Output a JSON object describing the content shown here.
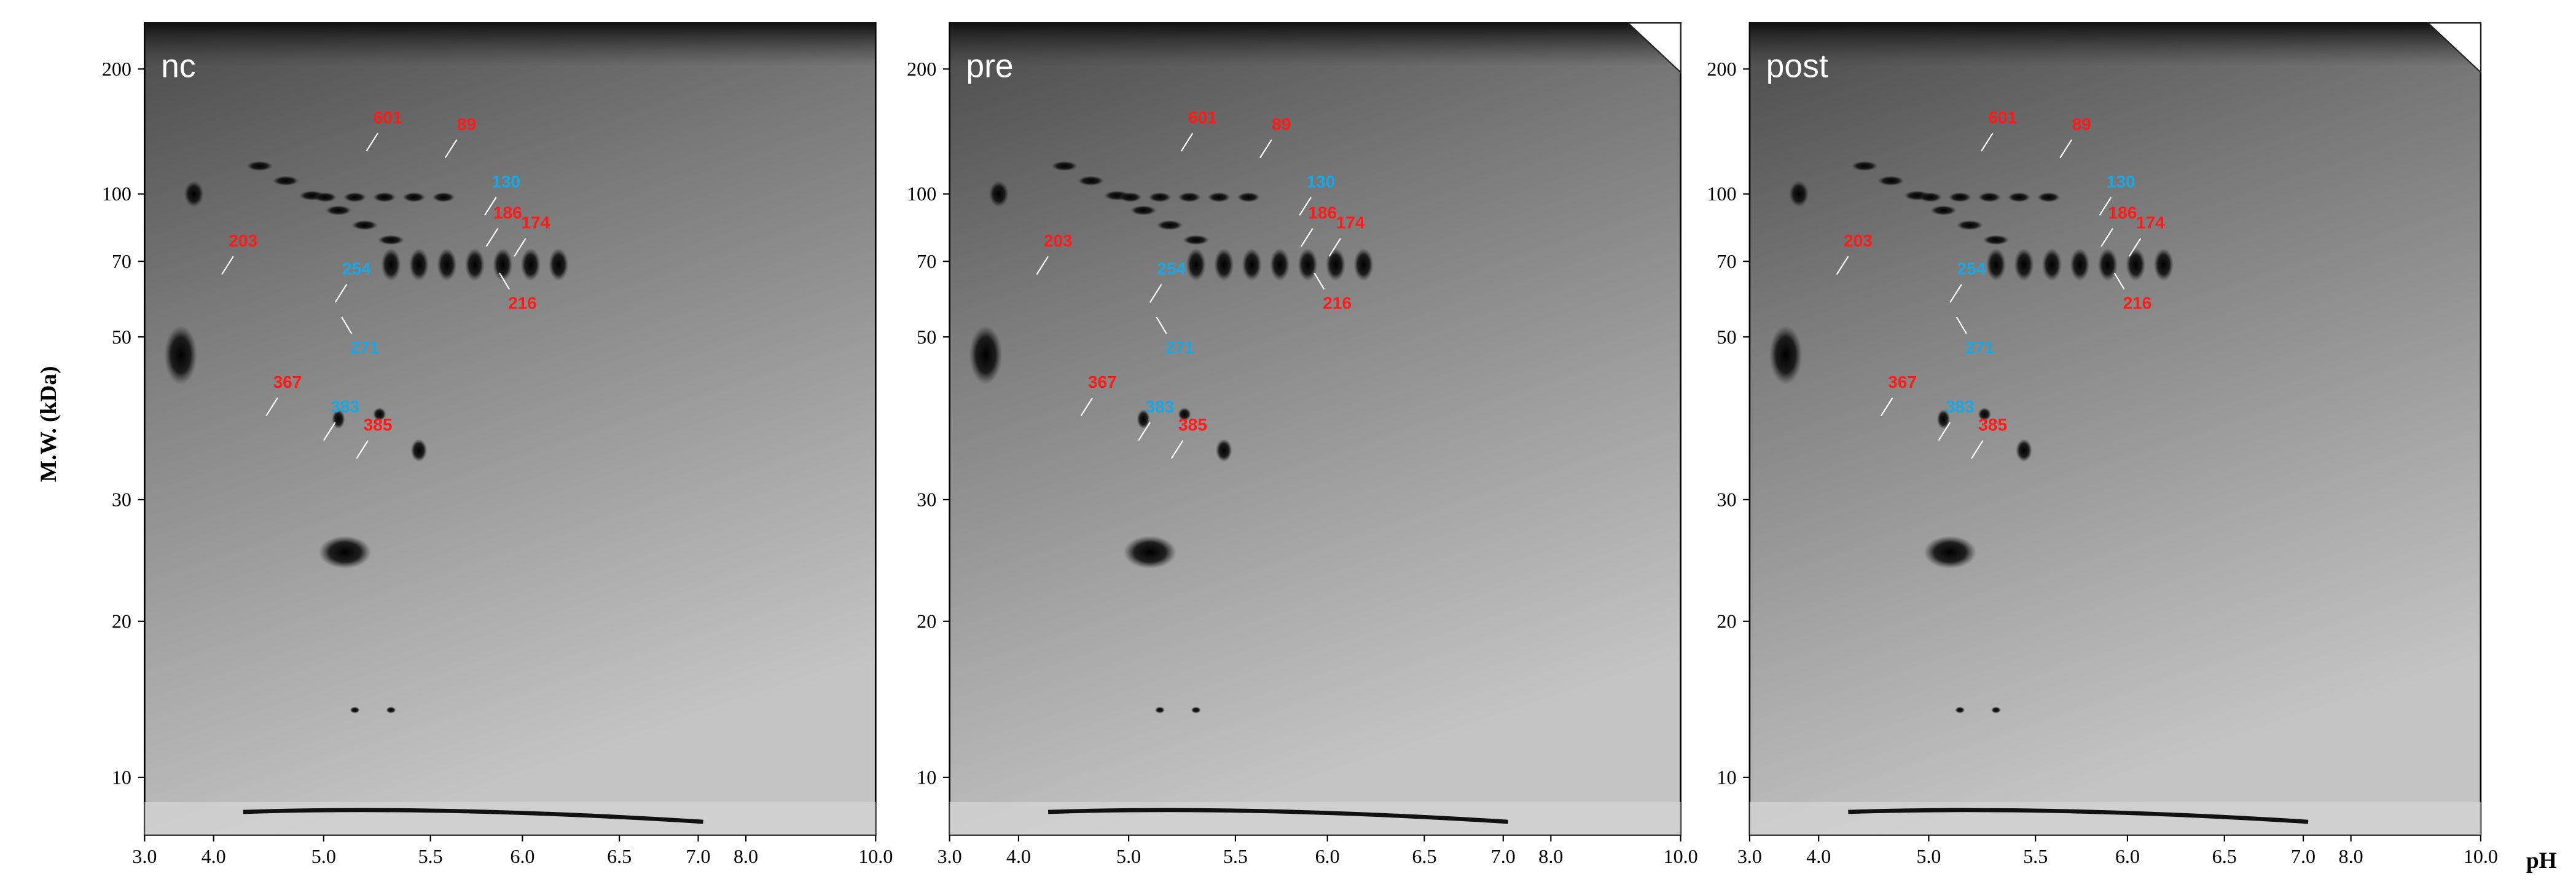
{
  "y_axis_label": "M.W. (kDa)",
  "x_axis_label": "pH",
  "yticks": [
    200,
    100,
    70,
    50,
    30,
    20,
    10
  ],
  "xticks": [
    {
      "value": 3,
      "label": "3.0"
    },
    {
      "value": 4,
      "label": "4.0"
    },
    {
      "value": 5,
      "label": "5.0"
    },
    {
      "value": 5.5,
      "label": "5.5"
    },
    {
      "value": 6,
      "label": "6.0"
    },
    {
      "value": 6.5,
      "label": "6.5"
    },
    {
      "value": 7,
      "label": "7.0"
    },
    {
      "value": 8,
      "label": "8.0"
    },
    {
      "value": 10,
      "label": "10.0"
    }
  ],
  "panels": [
    {
      "title": "nc",
      "spots": [
        {
          "label": "601",
          "color": "#ff1a1a"
        },
        {
          "label": "89",
          "color": "#ff1a1a"
        },
        {
          "label": "130",
          "color": "#1aa7e6"
        },
        {
          "label": "186",
          "color": "#ff1a1a"
        },
        {
          "label": "174",
          "color": "#ff1a1a"
        },
        {
          "label": "203",
          "color": "#ff1a1a"
        },
        {
          "label": "254",
          "color": "#1aa7e6"
        },
        {
          "label": "216",
          "color": "#ff1a1a"
        },
        {
          "label": "271",
          "color": "#1aa7e6"
        },
        {
          "label": "367",
          "color": "#ff1a1a"
        },
        {
          "label": "383",
          "color": "#1aa7e6"
        },
        {
          "label": "385",
          "color": "#ff1a1a"
        }
      ]
    },
    {
      "title": "pre",
      "spots": [
        {
          "label": "601",
          "color": "#ff1a1a"
        },
        {
          "label": "89",
          "color": "#ff1a1a"
        },
        {
          "label": "130",
          "color": "#1aa7e6"
        },
        {
          "label": "186",
          "color": "#ff1a1a"
        },
        {
          "label": "174",
          "color": "#ff1a1a"
        },
        {
          "label": "203",
          "color": "#ff1a1a"
        },
        {
          "label": "254",
          "color": "#1aa7e6"
        },
        {
          "label": "216",
          "color": "#ff1a1a"
        },
        {
          "label": "271",
          "color": "#1aa7e6"
        },
        {
          "label": "367",
          "color": "#ff1a1a"
        },
        {
          "label": "383",
          "color": "#1aa7e6"
        },
        {
          "label": "385",
          "color": "#ff1a1a"
        }
      ]
    },
    {
      "title": "post",
      "spots": [
        {
          "label": "601",
          "color": "#ff1a1a"
        },
        {
          "label": "89",
          "color": "#ff1a1a"
        },
        {
          "label": "130",
          "color": "#1aa7e6"
        },
        {
          "label": "186",
          "color": "#ff1a1a"
        },
        {
          "label": "174",
          "color": "#ff1a1a"
        },
        {
          "label": "203",
          "color": "#ff1a1a"
        },
        {
          "label": "254",
          "color": "#1aa7e6"
        },
        {
          "label": "216",
          "color": "#ff1a1a"
        },
        {
          "label": "271",
          "color": "#1aa7e6"
        },
        {
          "label": "367",
          "color": "#ff1a1a"
        },
        {
          "label": "383",
          "color": "#1aa7e6"
        },
        {
          "label": "385",
          "color": "#ff1a1a"
        }
      ]
    }
  ]
}
